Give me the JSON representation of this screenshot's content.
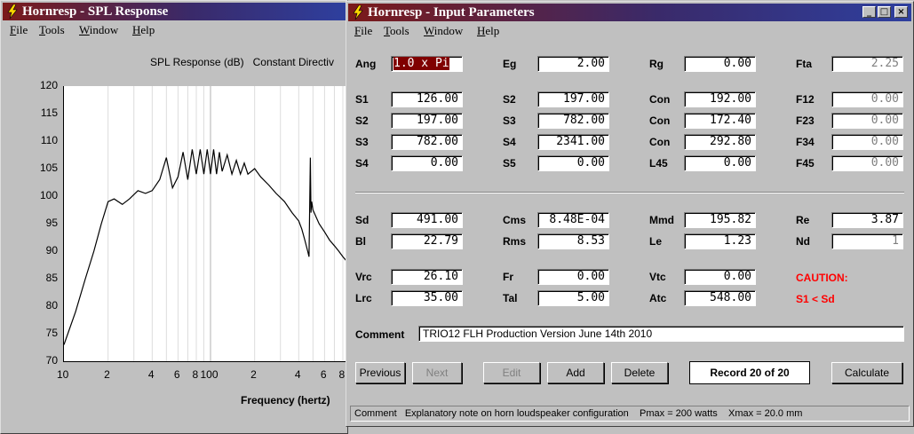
{
  "spl_window": {
    "title": "Hornresp - SPL Response",
    "menu": [
      "File",
      "Tools",
      "Window",
      "Help"
    ],
    "chart_title": "SPL Response (dB)   Constant Directiv",
    "xlabel": "Frequency (hertz)",
    "y_ticks": [
      "120",
      "115",
      "110",
      "105",
      "100",
      "95",
      "90",
      "85",
      "80",
      "75",
      "70"
    ],
    "x_ticks": [
      "10",
      "2",
      "4",
      "6",
      "8",
      "100",
      "2",
      "4",
      "6",
      "8"
    ]
  },
  "chart_data": {
    "type": "line",
    "title": "SPL Response (dB)   Constant Directiv",
    "xlabel": "Frequency (hertz)",
    "ylabel": "",
    "xscale": "log",
    "xlim": [
      10,
      900
    ],
    "ylim": [
      70,
      120
    ],
    "grid": true,
    "series": [
      {
        "x": [
          10,
          12,
          14,
          16,
          18,
          20,
          22,
          25,
          28,
          32,
          36,
          40,
          45,
          50,
          55,
          60,
          65,
          70,
          75,
          80,
          85,
          90,
          95,
          100,
          105,
          110,
          115,
          120,
          130,
          140,
          150,
          160,
          170,
          180,
          200,
          220,
          250,
          280,
          320,
          360,
          400,
          420,
          440,
          460,
          470,
          480,
          485,
          490,
          500,
          520,
          550,
          600,
          650,
          700,
          750,
          800,
          860
        ],
        "y": [
          73,
          79,
          85,
          90,
          95,
          99,
          99.5,
          98.5,
          99.5,
          101,
          100.5,
          101,
          103,
          107,
          101.5,
          103.5,
          108,
          103,
          108.5,
          104,
          108.5,
          104,
          108.5,
          104,
          108.5,
          104,
          108,
          104.5,
          107.5,
          104,
          106.5,
          104,
          106,
          104,
          105,
          103.5,
          102,
          100.5,
          99,
          97,
          95.5,
          94,
          92,
          90,
          89,
          107,
          97,
          99,
          97.5,
          96.5,
          95,
          93.5,
          92,
          91,
          90,
          89,
          88
        ]
      }
    ]
  },
  "input_window": {
    "title": "Hornresp - Input Parameters",
    "menu": [
      "File",
      "Tools",
      "Window",
      "Help"
    ],
    "btn_min": "_",
    "btn_max": "□",
    "btn_close": "×",
    "params": {
      "ang": {
        "label": "Ang",
        "value": "1.0 x Pi"
      },
      "eg": {
        "label": "Eg",
        "value": "2.00"
      },
      "rg": {
        "label": "Rg",
        "value": "0.00"
      },
      "fta": {
        "label": "Fta",
        "value": "2.25"
      },
      "s1": {
        "label": "S1",
        "value": "126.00"
      },
      "s2a": {
        "label": "S2",
        "value": "197.00"
      },
      "con1": {
        "label": "Con",
        "value": "192.00"
      },
      "f12": {
        "label": "F12",
        "value": "0.00"
      },
      "s2b": {
        "label": "S2",
        "value": "197.00"
      },
      "s3a": {
        "label": "S3",
        "value": "782.00"
      },
      "con2": {
        "label": "Con",
        "value": "172.40"
      },
      "f23": {
        "label": "F23",
        "value": "0.00"
      },
      "s3b": {
        "label": "S3",
        "value": "782.00"
      },
      "s4a": {
        "label": "S4",
        "value": "2341.00"
      },
      "con3": {
        "label": "Con",
        "value": "292.80"
      },
      "f34": {
        "label": "F34",
        "value": "0.00"
      },
      "s4b": {
        "label": "S4",
        "value": "0.00"
      },
      "s5": {
        "label": "S5",
        "value": "0.00"
      },
      "l45": {
        "label": "L45",
        "value": "0.00"
      },
      "f45": {
        "label": "F45",
        "value": "0.00"
      },
      "sd": {
        "label": "Sd",
        "value": "491.00"
      },
      "cms": {
        "label": "Cms",
        "value": "8.48E-04"
      },
      "mmd": {
        "label": "Mmd",
        "value": "195.82"
      },
      "re": {
        "label": "Re",
        "value": "3.87"
      },
      "bl": {
        "label": "Bl",
        "value": "22.79"
      },
      "rms": {
        "label": "Rms",
        "value": "8.53"
      },
      "le": {
        "label": "Le",
        "value": "1.23"
      },
      "nd": {
        "label": "Nd",
        "value": "1"
      },
      "vrc": {
        "label": "Vrc",
        "value": "26.10"
      },
      "fr": {
        "label": "Fr",
        "value": "0.00"
      },
      "vtc": {
        "label": "Vtc",
        "value": "0.00"
      },
      "lrc": {
        "label": "Lrc",
        "value": "35.00"
      },
      "tal": {
        "label": "Tal",
        "value": "5.00"
      },
      "atc": {
        "label": "Atc",
        "value": "548.00"
      }
    },
    "caution_title": "CAUTION:",
    "caution_text": "S1 < Sd",
    "comment_label": "Comment",
    "comment_value": "TRIO12 FLH Production Version June 14th 2010",
    "buttons": {
      "previous": "Previous",
      "next": "Next",
      "edit": "Edit",
      "add": "Add",
      "delete": "Delete",
      "record": "Record 20 of 20",
      "calculate": "Calculate"
    },
    "status": "Comment   Explanatory note on horn loudspeaker configuration    Pmax = 200 watts    Xmax = 20.0 mm",
    "colors": {
      "caution": "#ff0000",
      "title_start": "#7b1a1a",
      "title_end": "#2e3f9e"
    }
  }
}
